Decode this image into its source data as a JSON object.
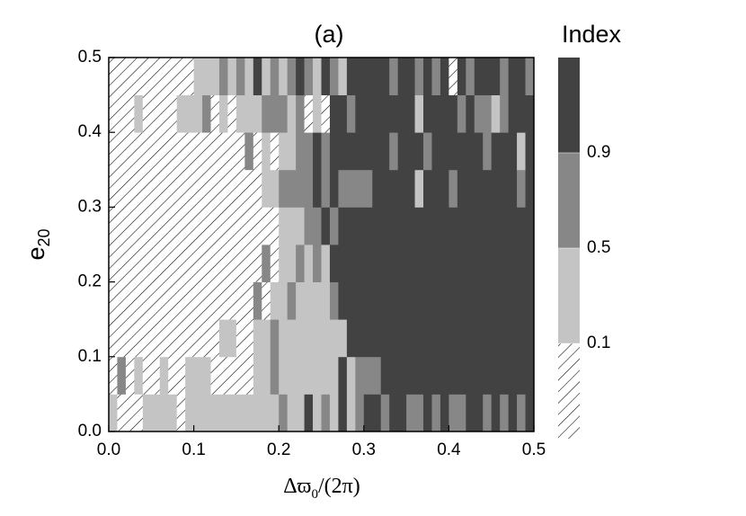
{
  "chart_data": {
    "type": "heatmap",
    "title": "(a)",
    "xlabel": {
      "main": "Δϖ",
      "sub": "0",
      "tail": "/(2π)"
    },
    "ylabel": {
      "main": "e",
      "sub": "20"
    },
    "xlim": [
      0,
      0.5
    ],
    "ylim": [
      0,
      0.5
    ],
    "xticks": [
      {
        "value": 0,
        "label": "0.0"
      },
      0.1,
      0.2,
      0.3,
      0.4,
      0.5
    ],
    "yticks": [
      {
        "value": 0,
        "label": "0.0"
      },
      0.1,
      0.2,
      0.3,
      0.4,
      0.5
    ],
    "colorbar_title": "Index",
    "colorbar_ticks": [
      0.1,
      0.5,
      0.9
    ],
    "colors": [
      "#c4c4c4",
      "#878787",
      "#424242"
    ],
    "hatch_below": true,
    "z": [
      [
        0.3,
        0,
        0,
        0,
        0.3,
        0.3,
        0.3,
        0.3,
        0,
        0.3,
        0.3,
        0.3,
        0.3,
        0.3,
        0.3,
        0.3,
        0.3,
        0.3,
        0.3,
        0.3,
        0.7,
        0.3,
        0.3,
        1,
        0.3,
        0.7,
        0.3,
        1,
        0.3,
        0.7,
        1,
        1,
        0.7,
        1,
        1,
        0.7,
        0.7,
        1,
        0.7,
        1,
        0.7,
        0.7,
        1,
        1,
        0.7,
        1,
        0.7,
        1,
        0.7,
        1
      ],
      [
        0,
        0.7,
        0,
        0.3,
        0,
        0,
        0.3,
        0,
        0,
        0.3,
        0.3,
        0.3,
        0,
        0,
        0,
        0,
        0,
        0.3,
        0.3,
        0.7,
        0.3,
        0.3,
        0.3,
        0.3,
        0.3,
        0.3,
        0.3,
        1,
        0.3,
        0.7,
        0.7,
        0.7,
        1,
        1,
        1,
        1,
        1,
        1,
        1,
        1,
        1,
        1,
        1,
        1,
        1,
        1,
        1,
        1,
        1,
        1
      ],
      [
        0,
        0,
        0,
        0,
        0,
        0,
        0,
        0,
        0,
        0,
        0,
        0,
        0,
        0.3,
        0.3,
        0,
        0,
        0.3,
        0.3,
        0.7,
        0.3,
        0.3,
        0.3,
        0.3,
        0.3,
        0.3,
        0.3,
        0.3,
        1,
        1,
        1,
        1,
        1,
        1,
        1,
        1,
        1,
        1,
        1,
        1,
        1,
        1,
        1,
        1,
        1,
        1,
        1,
        1,
        1,
        1
      ],
      [
        0,
        0,
        0,
        0,
        0,
        0,
        0,
        0,
        0,
        0,
        0,
        0,
        0,
        0,
        0,
        0,
        0,
        0.7,
        0,
        0.3,
        0.3,
        0.7,
        0.3,
        0.3,
        0.3,
        0.3,
        0.7,
        1,
        1,
        1,
        1,
        1,
        1,
        1,
        1,
        1,
        1,
        1,
        1,
        1,
        1,
        1,
        1,
        1,
        1,
        1,
        1,
        1,
        1,
        1
      ],
      [
        0,
        0,
        0,
        0,
        0,
        0,
        0,
        0,
        0,
        0,
        0,
        0,
        0,
        0,
        0,
        0,
        0,
        0,
        0.7,
        0,
        0.3,
        0.3,
        0.7,
        0.3,
        0.7,
        0.3,
        1,
        1,
        1,
        1,
        1,
        1,
        1,
        1,
        1,
        1,
        1,
        1,
        1,
        1,
        1,
        1,
        1,
        1,
        1,
        1,
        1,
        1,
        1,
        1
      ],
      [
        0,
        0,
        0,
        0,
        0,
        0,
        0,
        0,
        0,
        0,
        0,
        0,
        0,
        0,
        0,
        0,
        0,
        0,
        0,
        0,
        0.3,
        0.3,
        0.3,
        0.7,
        0.7,
        1,
        0.7,
        1,
        1,
        1,
        1,
        1,
        1,
        1,
        1,
        1,
        1,
        1,
        1,
        1,
        1,
        1,
        1,
        1,
        1,
        1,
        1,
        1,
        1,
        1
      ],
      [
        0,
        0,
        0,
        0,
        0,
        0,
        0,
        0,
        0,
        0,
        0,
        0,
        0,
        0,
        0,
        0,
        0,
        0,
        0.3,
        0.3,
        0.7,
        0.7,
        0.7,
        0.7,
        1,
        0.7,
        1,
        0.7,
        0.7,
        0.7,
        0.7,
        1,
        1,
        1,
        1,
        1,
        0.3,
        1,
        1,
        1,
        0.7,
        1,
        1,
        1,
        1,
        1,
        1,
        1,
        0.7,
        1
      ],
      [
        0,
        0,
        0,
        0,
        0,
        0,
        0,
        0,
        0,
        0,
        0,
        0,
        0,
        0,
        0,
        0,
        0.7,
        0,
        0.3,
        0,
        0.3,
        0.3,
        0.7,
        0.7,
        1,
        0.7,
        1,
        1,
        1,
        1,
        1,
        1,
        1,
        0.7,
        1,
        1,
        1,
        0.7,
        1,
        1,
        1,
        1,
        1,
        1,
        0.7,
        1,
        1,
        1,
        0.3,
        1
      ],
      [
        0,
        0,
        0,
        0.3,
        0,
        0,
        0,
        0,
        0.3,
        0.3,
        0.3,
        0.7,
        0,
        0.3,
        0,
        0.3,
        0.3,
        0.3,
        0.7,
        0.7,
        0.7,
        0.3,
        0.7,
        0,
        0.3,
        0,
        1,
        1,
        0.7,
        1,
        1,
        1,
        1,
        1,
        1,
        1,
        0.3,
        1,
        1,
        1,
        1,
        0.7,
        1,
        0.7,
        0.7,
        0.3,
        0.7,
        1,
        1,
        1
      ],
      [
        0,
        0,
        0,
        0,
        0,
        0,
        0,
        0,
        0,
        0,
        0.3,
        0.3,
        0.3,
        0.7,
        0.3,
        0.7,
        0.3,
        1,
        0.3,
        0.7,
        0.3,
        0.7,
        1,
        0.7,
        0.3,
        1,
        0.7,
        0.3,
        1,
        1,
        1,
        1,
        1,
        0.7,
        1,
        1,
        0.7,
        1,
        0.7,
        1,
        0,
        1,
        0.7,
        1,
        1,
        1,
        0.7,
        1,
        1,
        0.7
      ]
    ]
  }
}
